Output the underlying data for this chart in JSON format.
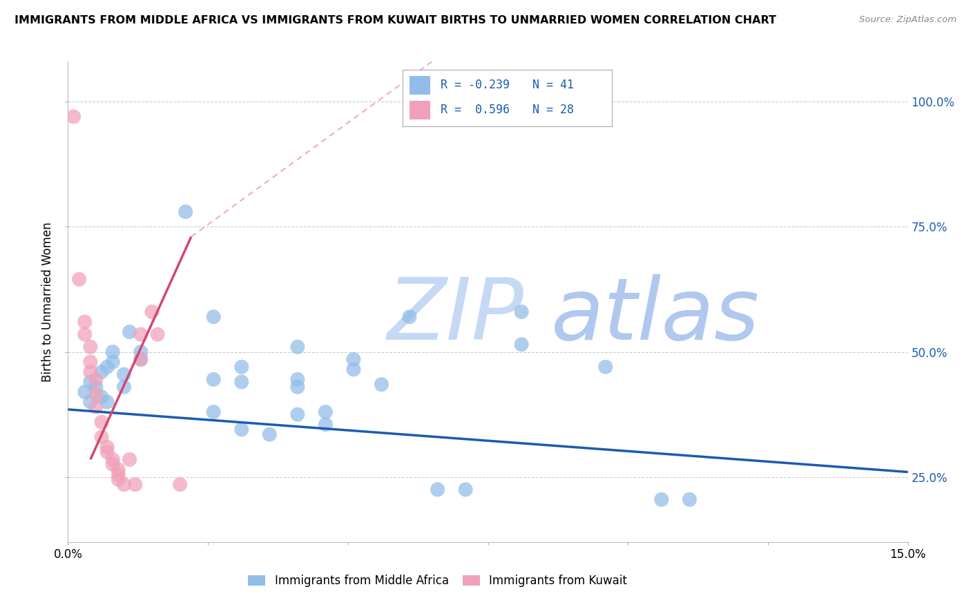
{
  "title": "IMMIGRANTS FROM MIDDLE AFRICA VS IMMIGRANTS FROM KUWAIT BIRTHS TO UNMARRIED WOMEN CORRELATION CHART",
  "source": "Source: ZipAtlas.com",
  "ylabel": "Births to Unmarried Women",
  "legend_blue_label": "Immigrants from Middle Africa",
  "legend_pink_label": "Immigrants from Kuwait",
  "legend_blue_r_val": "-0.239",
  "legend_blue_n_val": "41",
  "legend_pink_r_val": " 0.596",
  "legend_pink_n_val": "28",
  "xlim": [
    0.0,
    0.15
  ],
  "ylim": [
    0.12,
    1.08
  ],
  "xticks": [
    0.0,
    0.025,
    0.05,
    0.075,
    0.1,
    0.125,
    0.15
  ],
  "xtick_labels_show": {
    "0": "0.0%",
    "6": "15.0%"
  },
  "yticks_right": [
    0.25,
    0.5,
    0.75,
    1.0
  ],
  "ytick_labels_right": [
    "25.0%",
    "50.0%",
    "75.0%",
    "100.0%"
  ],
  "blue_trendline": [
    [
      0.0,
      0.385
    ],
    [
      0.15,
      0.26
    ]
  ],
  "pink_trendline_solid": [
    [
      0.004,
      0.285
    ],
    [
      0.022,
      0.73
    ]
  ],
  "pink_trendline_dashed": [
    [
      0.022,
      0.73
    ],
    [
      0.065,
      1.08
    ]
  ],
  "blue_dots": [
    [
      0.003,
      0.42
    ],
    [
      0.004,
      0.4
    ],
    [
      0.004,
      0.44
    ],
    [
      0.005,
      0.43
    ],
    [
      0.006,
      0.46
    ],
    [
      0.006,
      0.41
    ],
    [
      0.007,
      0.47
    ],
    [
      0.007,
      0.4
    ],
    [
      0.008,
      0.48
    ],
    [
      0.008,
      0.5
    ],
    [
      0.01,
      0.455
    ],
    [
      0.01,
      0.43
    ],
    [
      0.011,
      0.54
    ],
    [
      0.013,
      0.5
    ],
    [
      0.013,
      0.485
    ],
    [
      0.021,
      0.78
    ],
    [
      0.026,
      0.57
    ],
    [
      0.026,
      0.445
    ],
    [
      0.026,
      0.38
    ],
    [
      0.031,
      0.47
    ],
    [
      0.031,
      0.44
    ],
    [
      0.031,
      0.345
    ],
    [
      0.036,
      0.335
    ],
    [
      0.041,
      0.51
    ],
    [
      0.041,
      0.445
    ],
    [
      0.041,
      0.43
    ],
    [
      0.041,
      0.375
    ],
    [
      0.046,
      0.38
    ],
    [
      0.046,
      0.355
    ],
    [
      0.051,
      0.485
    ],
    [
      0.051,
      0.465
    ],
    [
      0.056,
      0.435
    ],
    [
      0.061,
      0.57
    ],
    [
      0.066,
      0.225
    ],
    [
      0.071,
      0.225
    ],
    [
      0.081,
      0.58
    ],
    [
      0.081,
      0.515
    ],
    [
      0.096,
      0.47
    ],
    [
      0.106,
      0.205
    ],
    [
      0.111,
      0.205
    ]
  ],
  "pink_dots": [
    [
      0.001,
      0.97
    ],
    [
      0.002,
      0.645
    ],
    [
      0.003,
      0.56
    ],
    [
      0.003,
      0.535
    ],
    [
      0.004,
      0.51
    ],
    [
      0.004,
      0.48
    ],
    [
      0.004,
      0.46
    ],
    [
      0.005,
      0.445
    ],
    [
      0.005,
      0.415
    ],
    [
      0.005,
      0.39
    ],
    [
      0.006,
      0.36
    ],
    [
      0.006,
      0.33
    ],
    [
      0.007,
      0.31
    ],
    [
      0.007,
      0.3
    ],
    [
      0.008,
      0.285
    ],
    [
      0.008,
      0.275
    ],
    [
      0.009,
      0.265
    ],
    [
      0.009,
      0.255
    ],
    [
      0.009,
      0.245
    ],
    [
      0.01,
      0.235
    ],
    [
      0.011,
      0.285
    ],
    [
      0.012,
      0.235
    ],
    [
      0.013,
      0.535
    ],
    [
      0.013,
      0.485
    ],
    [
      0.015,
      0.58
    ],
    [
      0.016,
      0.535
    ],
    [
      0.02,
      0.235
    ]
  ],
  "blue_color": "#90bce8",
  "pink_color": "#f0a0b8",
  "blue_trend_color": "#1a5cb0",
  "pink_trend_color": "#d04870",
  "background_color": "#ffffff",
  "grid_color": "#cccccc",
  "watermark_zip_color": "#c5d8f5",
  "watermark_atlas_color": "#b0c8ee"
}
